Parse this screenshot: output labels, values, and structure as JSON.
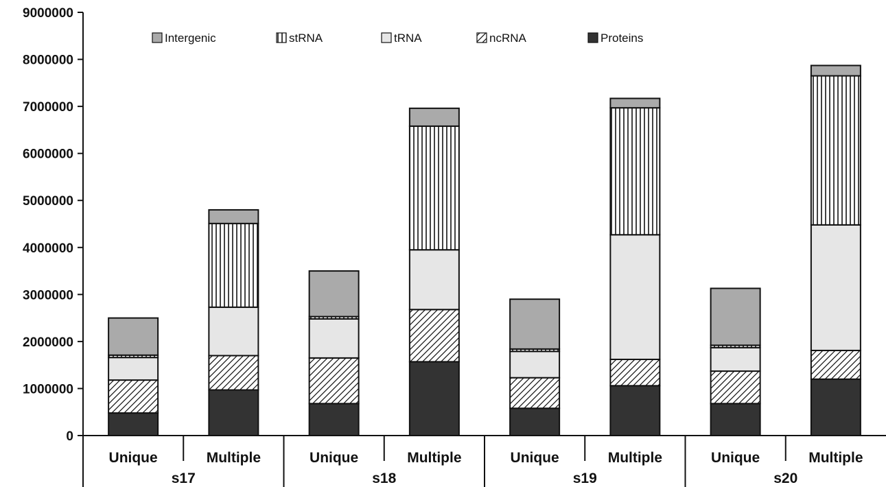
{
  "chart_data": {
    "type": "bar",
    "stacked": true,
    "title": "",
    "xlabel": "",
    "ylabel": "",
    "ylim": [
      0,
      9000000
    ],
    "yticks": [
      "0",
      "1000000",
      "2000000",
      "3000000",
      "4000000",
      "5000000",
      "6000000",
      "7000000",
      "8000000",
      "9000000"
    ],
    "grid": false,
    "legend_position": "top",
    "groups": [
      "s17",
      "s18",
      "s19",
      "s20"
    ],
    "categories": [
      "Unique",
      "Multiple",
      "Unique",
      "Multiple",
      "Unique",
      "Multiple",
      "Unique",
      "Multiple"
    ],
    "series": [
      {
        "name": "Proteins",
        "pattern": "solid-dark",
        "color": "#333333",
        "values": [
          480000,
          970000,
          680000,
          1570000,
          580000,
          1060000,
          680000,
          1200000
        ]
      },
      {
        "name": "ncRNA",
        "pattern": "diagonal-hatch",
        "color": "#ffffff",
        "values": [
          700000,
          730000,
          970000,
          1110000,
          650000,
          560000,
          690000,
          610000
        ]
      },
      {
        "name": "tRNA",
        "pattern": "solid-light",
        "color": "#e6e6e6",
        "values": [
          480000,
          1030000,
          830000,
          1270000,
          560000,
          2650000,
          500000,
          2670000
        ]
      },
      {
        "name": "stRNA",
        "pattern": "vertical-lines",
        "color": "#ffffff",
        "values": [
          50000,
          1780000,
          50000,
          2630000,
          50000,
          2700000,
          50000,
          3170000
        ]
      },
      {
        "name": "Intergenic",
        "pattern": "solid-mid",
        "color": "#aaaaaa",
        "values": [
          790000,
          290000,
          970000,
          380000,
          1060000,
          200000,
          1210000,
          220000
        ]
      }
    ],
    "legend_order": [
      "Intergenic",
      "stRNA",
      "tRNA",
      "ncRNA",
      "Proteins"
    ]
  }
}
